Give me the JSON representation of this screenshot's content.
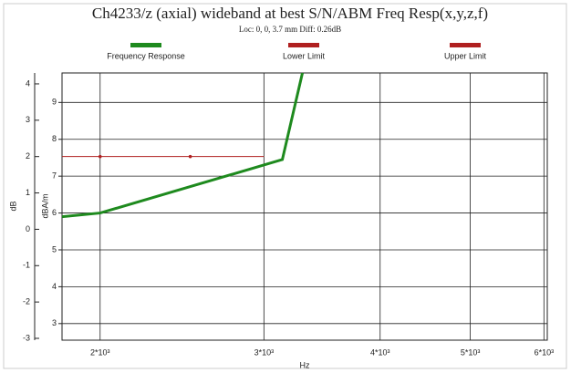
{
  "chart_data": {
    "type": "line",
    "title": "Ch4233/z (axial) wideband at best S/N/ABM Freq Resp(x,y,z,f)",
    "subtitle": "Loc: 0, 0, 3.7 mm Diff: 0.26dB",
    "xlabel": "Hz",
    "ylabel": "dB",
    "y2label": "dBA/m",
    "xscale": "log",
    "xlim": [
      1820,
      6050
    ],
    "xticks": [
      {
        "value": 2000,
        "label": "2*10³"
      },
      {
        "value": 3000,
        "label": "3*10³"
      },
      {
        "value": 4000,
        "label": "4*10³"
      },
      {
        "value": 5000,
        "label": "5*10³"
      },
      {
        "value": 6000,
        "label": "6*10³"
      }
    ],
    "ylim": [
      -3.05,
      4.3
    ],
    "yticks": [
      -3,
      -2,
      -1,
      0,
      1,
      2,
      3,
      4
    ],
    "y2lim": [
      2.55,
      9.8
    ],
    "y2ticks": [
      3,
      4,
      5,
      6,
      7,
      8,
      9
    ],
    "grid": true,
    "series": [
      {
        "name": "Frequency Response",
        "color": "#1e8a1e",
        "axis": "y2",
        "x": [
          1820,
          2000,
          3140,
          3300
        ],
        "values": [
          5.9,
          6.0,
          7.45,
          9.8
        ]
      },
      {
        "name": "Lower Limit",
        "color": "#b02020",
        "axis": "y",
        "x": [
          1820,
          2000,
          2500,
          3000
        ],
        "values": [
          2,
          2,
          2,
          2
        ]
      },
      {
        "name": "Upper Limit",
        "color": "#b02020",
        "axis": "y",
        "x": [],
        "values": []
      }
    ]
  }
}
